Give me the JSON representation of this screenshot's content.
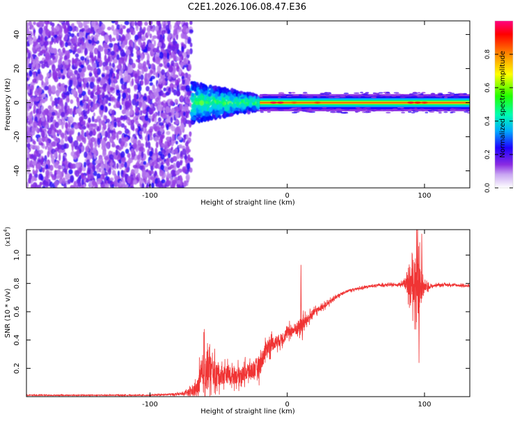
{
  "title": "C2E1.2026.106.08.47.E36",
  "colors": {
    "snr_line": "#f03434",
    "frame": "#000000",
    "background": "#ffffff"
  },
  "chart_data": [
    {
      "type": "heatmap",
      "xlabel": "Height of straight line (km)",
      "ylabel": "Frequency (Hz)",
      "xlim": [
        -190,
        133
      ],
      "ylim": [
        -50,
        48
      ],
      "x_ticks": [
        {
          "value": -100,
          "label": "-100"
        },
        {
          "value": 0,
          "label": "0"
        },
        {
          "value": 100,
          "label": "100"
        }
      ],
      "y_ticks": [
        {
          "value": -40,
          "label": "-40"
        },
        {
          "value": -20,
          "label": "-20"
        },
        {
          "value": 0,
          "label": "0"
        },
        {
          "value": 20,
          "label": "20"
        },
        {
          "value": 40,
          "label": "40"
        }
      ],
      "colorbar": {
        "label": "Normalized spectral amplitude",
        "range": [
          0,
          1
        ],
        "ticks": [
          {
            "value": 0.0,
            "label": "0.0"
          },
          {
            "value": 0.2,
            "label": "0.2"
          },
          {
            "value": 0.4,
            "label": "0.4"
          },
          {
            "value": 0.6,
            "label": "0.6"
          },
          {
            "value": 0.8,
            "label": "0.8"
          }
        ],
        "colormap": [
          "#ffffff",
          "#8a2be2",
          "#0000ff",
          "#00c8ff",
          "#00ff66",
          "#ffff00",
          "#ff8800",
          "#ff0000",
          "#ff0080"
        ]
      },
      "regions": [
        {
          "name": "noise",
          "x_range": [
            -190,
            -70
          ],
          "freq_range": [
            -50,
            48
          ],
          "amplitude": 0.15
        },
        {
          "name": "transition",
          "x_range": [
            -70,
            -20
          ],
          "freq_range": [
            -14,
            14
          ],
          "amplitude": 0.4
        },
        {
          "name": "tone",
          "x_range": [
            -20,
            133
          ],
          "center_freq": 0,
          "half_width": 5,
          "amplitude": 0.8
        }
      ]
    },
    {
      "type": "line",
      "xlabel": "Height of straight line (km)",
      "ylabel": "SNR (10 * v/v)",
      "y_multiplier": "(x10^4)",
      "xlim": [
        -190,
        133
      ],
      "ylim": [
        0,
        1.18
      ],
      "x_ticks": [
        {
          "value": -100,
          "label": "-100"
        },
        {
          "value": 0,
          "label": "0"
        },
        {
          "value": 100,
          "label": "100"
        }
      ],
      "y_ticks": [
        {
          "value": 0.2,
          "label": "0.2"
        },
        {
          "value": 0.4,
          "label": "0.4"
        },
        {
          "value": 0.6,
          "label": "0.6"
        },
        {
          "value": 0.8,
          "label": "0.8"
        },
        {
          "value": 1.0,
          "label": "1.0"
        }
      ],
      "series": [
        {
          "x": [
            -190,
            -150,
            -100,
            -75,
            -66,
            -60,
            -55,
            -50,
            -45,
            -40,
            -35,
            -30,
            -25,
            -20,
            -15,
            -10,
            -5,
            0,
            5,
            10,
            15,
            20,
            25,
            30,
            35,
            40,
            45,
            50,
            60,
            70,
            80,
            85,
            88,
            92,
            95,
            97,
            100,
            105,
            110,
            120,
            133
          ],
          "y": [
            0.01,
            0.01,
            0.01,
            0.02,
            0.05,
            0.2,
            0.18,
            0.15,
            0.16,
            0.15,
            0.15,
            0.17,
            0.19,
            0.22,
            0.35,
            0.38,
            0.4,
            0.45,
            0.47,
            0.5,
            0.55,
            0.6,
            0.63,
            0.66,
            0.7,
            0.73,
            0.75,
            0.76,
            0.78,
            0.79,
            0.79,
            0.8,
            0.78,
            0.8,
            0.8,
            0.78,
            0.77,
            0.78,
            0.79,
            0.79,
            0.78
          ],
          "noise": [
            0.005,
            0.005,
            0.005,
            0.01,
            0.06,
            0.22,
            0.12,
            0.09,
            0.08,
            0.07,
            0.07,
            0.07,
            0.08,
            0.09,
            0.07,
            0.06,
            0.05,
            0.05,
            0.05,
            0.07,
            0.04,
            0.03,
            0.02,
            0.02,
            0.015,
            0.01,
            0.01,
            0.01,
            0.01,
            0.01,
            0.01,
            0.02,
            0.08,
            0.18,
            0.3,
            0.2,
            0.04,
            0.01,
            0.01,
            0.01,
            0.01
          ],
          "spikes": [
            {
              "x": 10,
              "y": 0.93
            },
            {
              "x": 11,
              "y": 0.4
            },
            {
              "x": 95,
              "y": 1.18
            },
            {
              "x": 96,
              "y": 0.24
            },
            {
              "x": 98,
              "y": 1.15
            }
          ],
          "points": 3000
        }
      ]
    }
  ]
}
